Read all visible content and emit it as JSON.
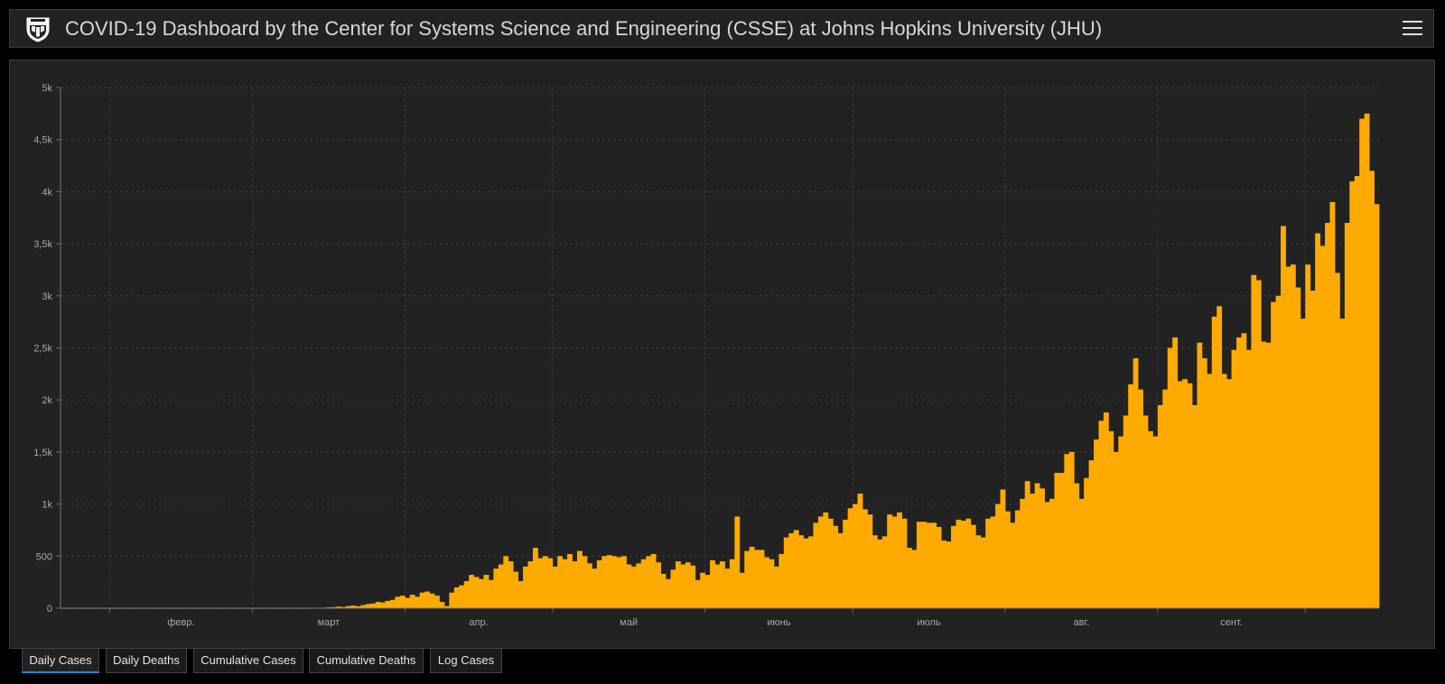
{
  "header": {
    "title": "COVID-19 Dashboard by the Center for Systems Science and Engineering (CSSE) at Johns Hopkins University (JHU)",
    "logo_icon": "jhu-shield-icon",
    "menu_icon": "hamburger-menu-icon"
  },
  "tabs": [
    {
      "label": "Daily Cases",
      "active": true
    },
    {
      "label": "Daily Deaths",
      "active": false
    },
    {
      "label": "Cumulative Cases",
      "active": false
    },
    {
      "label": "Cumulative Deaths",
      "active": false
    },
    {
      "label": "Log Cases",
      "active": false
    }
  ],
  "colors": {
    "bar": "#ffaa00",
    "background": "#222222",
    "active_tab_underline": "#1a8bd6"
  },
  "chart_data": {
    "type": "bar",
    "title": "",
    "xlabel": "",
    "ylabel": "",
    "ylim": [
      0,
      5000
    ],
    "y_ticks": [
      0,
      500,
      1000,
      1500,
      2000,
      2500,
      3000,
      3500,
      4000,
      4500,
      5000
    ],
    "y_tick_labels": [
      "0",
      "500",
      "1k",
      "1,5k",
      "2k",
      "2,5k",
      "3k",
      "3,5k",
      "4k",
      "4,5k",
      "5k"
    ],
    "x_tick_labels": [
      "февр.",
      "март",
      "апр.",
      "май",
      "июнь",
      "июль",
      "авг.",
      "сент."
    ],
    "x_tick_dates": [
      "2020-02-01",
      "2020-03-01",
      "2020-04-01",
      "2020-05-01",
      "2020-06-01",
      "2020-07-01",
      "2020-08-01",
      "2020-09-01"
    ],
    "x_start": "2020-01-22",
    "grid": true,
    "series": [
      {
        "values": [
          0,
          0,
          0,
          0,
          0,
          0,
          0,
          0,
          0,
          0,
          0,
          0,
          0,
          0,
          0,
          0,
          0,
          0,
          0,
          0,
          0,
          0,
          0,
          0,
          0,
          0,
          0,
          0,
          0,
          0,
          0,
          0,
          0,
          0,
          0,
          0,
          0,
          0,
          0,
          0,
          0,
          0,
          0,
          0,
          0,
          0,
          0,
          0,
          0,
          0,
          0,
          2,
          3,
          5,
          8,
          10,
          15,
          12,
          20,
          25,
          18,
          30,
          40,
          45,
          60,
          55,
          70,
          80,
          110,
          120,
          100,
          130,
          110,
          150,
          160,
          140,
          120,
          60,
          20,
          150,
          200,
          220,
          260,
          320,
          300,
          280,
          320,
          270,
          380,
          420,
          500,
          450,
          350,
          260,
          400,
          450,
          580,
          480,
          500,
          480,
          400,
          500,
          470,
          520,
          450,
          550,
          500,
          430,
          380,
          460,
          500,
          510,
          500,
          490,
          500,
          420,
          400,
          430,
          470,
          500,
          520,
          440,
          330,
          280,
          370,
          450,
          420,
          440,
          410,
          270,
          340,
          320,
          460,
          420,
          450,
          380,
          470,
          880,
          340,
          550,
          590,
          560,
          560,
          490,
          470,
          400,
          520,
          680,
          720,
          750,
          700,
          670,
          690,
          820,
          880,
          920,
          860,
          790,
          720,
          850,
          960,
          1000,
          1100,
          950,
          900,
          700,
          660,
          690,
          900,
          880,
          920,
          860,
          580,
          560,
          830,
          830,
          820,
          820,
          780,
          650,
          640,
          790,
          850,
          840,
          860,
          800,
          700,
          680,
          860,
          880,
          1000,
          1140,
          930,
          820,
          940,
          1050,
          1220,
          1100,
          1200,
          1150,
          1020,
          1050,
          1300,
          1300,
          1480,
          1500,
          1200,
          1050,
          1250,
          1420,
          1620,
          1800,
          1880,
          1700,
          1500,
          1650,
          1850,
          2150,
          2400,
          2100,
          1850,
          1700,
          1650,
          1950,
          2100,
          2500,
          2600,
          2180,
          2200,
          2160,
          1950,
          2550,
          2400,
          2250,
          2800,
          2900,
          2250,
          2200,
          2480,
          2600,
          2640,
          2480,
          3200,
          3150,
          2560,
          2550,
          2940,
          3000,
          3670,
          3280,
          3300,
          3080,
          2780,
          3300,
          3050,
          3600,
          3480,
          3700,
          3900,
          3220,
          2780,
          3700,
          4100,
          4150,
          4700,
          4750,
          4200,
          3880
        ]
      }
    ]
  }
}
